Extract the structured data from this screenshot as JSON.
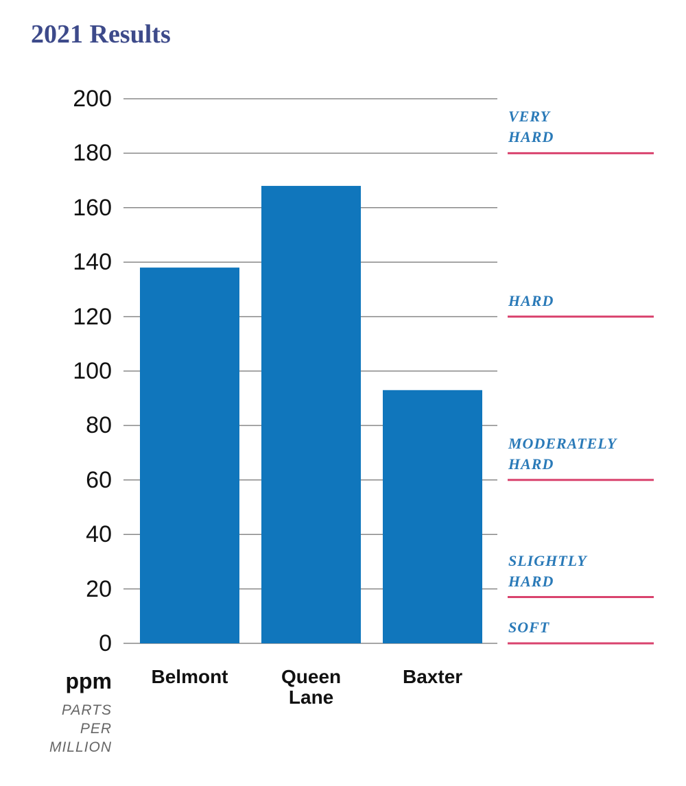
{
  "chart_data": {
    "type": "bar",
    "title": "2021 Results",
    "y_unit": "ppm",
    "y_unit_note": "PARTS PER MILLION",
    "categories": [
      "Belmont",
      "Queen Lane",
      "Baxter"
    ],
    "values": [
      138,
      168,
      93
    ],
    "color": "#1076bc",
    "ylim": [
      0,
      200
    ],
    "yticks": [
      0,
      20,
      40,
      60,
      80,
      100,
      120,
      140,
      160,
      180,
      200
    ],
    "grid": true,
    "reference_lines": [
      {
        "label": "VERY HARD",
        "value": 180
      },
      {
        "label": "HARD",
        "value": 120
      },
      {
        "label": "MODERATELY HARD",
        "value": 60
      },
      {
        "label": "SLIGHTLY HARD",
        "value": 17
      },
      {
        "label": "SOFT",
        "value": 0
      }
    ],
    "reference_color": "#d9436e"
  }
}
